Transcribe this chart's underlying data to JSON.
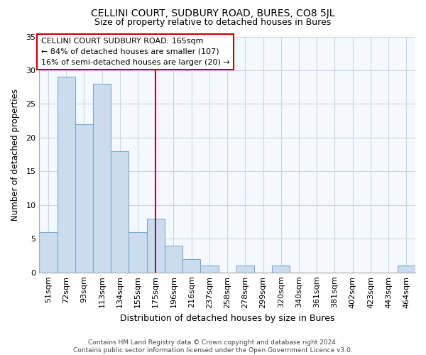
{
  "title": "CELLINI COURT, SUDBURY ROAD, BURES, CO8 5JL",
  "subtitle": "Size of property relative to detached houses in Bures",
  "xlabel": "Distribution of detached houses by size in Bures",
  "ylabel": "Number of detached properties",
  "categories": [
    "51sqm",
    "72sqm",
    "93sqm",
    "113sqm",
    "134sqm",
    "155sqm",
    "175sqm",
    "196sqm",
    "216sqm",
    "237sqm",
    "258sqm",
    "278sqm",
    "299sqm",
    "320sqm",
    "340sqm",
    "361sqm",
    "381sqm",
    "402sqm",
    "423sqm",
    "443sqm",
    "464sqm"
  ],
  "values": [
    6,
    29,
    22,
    28,
    18,
    6,
    8,
    4,
    2,
    1,
    0,
    1,
    0,
    1,
    0,
    0,
    0,
    0,
    0,
    0,
    1
  ],
  "bar_color": "#ccdcee",
  "bar_edge_color": "#7aaace",
  "grid_color": "#c8d8e8",
  "background_color": "#ffffff",
  "plot_bg_color": "#f5f8fc",
  "reference_line_x": 6.0,
  "reference_line_color": "#cc0000",
  "annotation_line1": "CELLINI COURT SUDBURY ROAD: 165sqm",
  "annotation_line2": "← 84% of detached houses are smaller (107)",
  "annotation_line3": "16% of semi-detached houses are larger (20) →",
  "annotation_box_color": "#ffffff",
  "annotation_box_edge_color": "#cc0000",
  "ylim": [
    0,
    35
  ],
  "yticks": [
    0,
    5,
    10,
    15,
    20,
    25,
    30,
    35
  ],
  "footer_line1": "Contains HM Land Registry data © Crown copyright and database right 2024.",
  "footer_line2": "Contains public sector information licensed under the Open Government Licence v3.0."
}
